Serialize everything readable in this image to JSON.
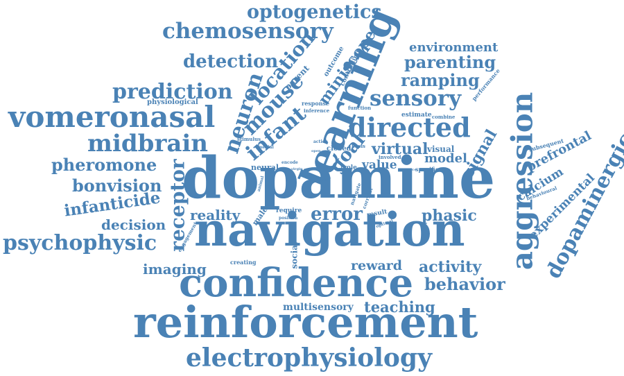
{
  "color": "#4a82b5",
  "words": [
    "dopamine",
    "navigation",
    "reinforcement",
    "confidence",
    "learning",
    "electrophysiology",
    "aggression",
    "vomeronasal",
    "directed",
    "dopaminergic",
    "midbrain",
    "chemosensory",
    "optogenetics",
    "neuron",
    "receptor",
    "prediction",
    "psychophysic",
    "sensory",
    "mouse",
    "infant",
    "detection",
    "location",
    "ramping",
    "parenting",
    "pheromone",
    "bonvision",
    "infanticide",
    "error",
    "behavior",
    "reward",
    "activity",
    "teaching",
    "multisensory",
    "imaging",
    "decision",
    "reality",
    "phasic",
    "environment",
    "miniscope",
    "goal",
    "virtual",
    "value",
    "model",
    "signal",
    "prefrontal",
    "calcium",
    "experimental",
    "physiological",
    "parent",
    "outcome",
    "controlling",
    "performance",
    "response",
    "inference",
    "function",
    "estimate",
    "combine",
    "stimulus",
    "closed",
    "basis",
    "visual",
    "subsequent",
    "medial",
    "open",
    "task",
    "involved",
    "neural",
    "encode",
    "virgin",
    "role",
    "source",
    "specific",
    "behavioural",
    "male",
    "engagement",
    "require",
    "position",
    "social",
    "creating",
    "result",
    "optimal",
    "navigate",
    "corridor",
    "action",
    "cue",
    "animal"
  ]
}
